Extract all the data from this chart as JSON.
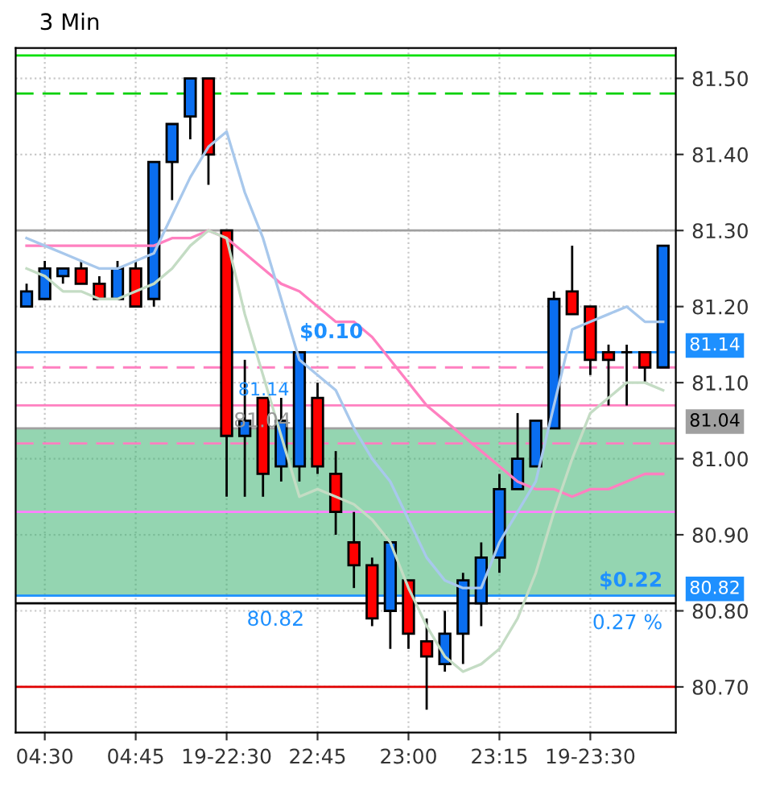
{
  "chart_data": {
    "type": "candlestick",
    "title": "3 Min",
    "categories": [
      null,
      "04:30",
      null,
      null,
      null,
      null,
      "04:45",
      null,
      null,
      null,
      null,
      "19-22:30",
      null,
      null,
      null,
      null,
      "22:45",
      null,
      null,
      null,
      null,
      "23:00",
      null,
      null,
      null,
      null,
      "23:15",
      null,
      null,
      null,
      null,
      "19-23:30",
      null,
      null,
      null,
      null
    ],
    "ohlc": [
      [
        81.2,
        81.23,
        81.2,
        81.22
      ],
      [
        81.21,
        81.26,
        81.21,
        81.25
      ],
      [
        81.24,
        81.25,
        81.23,
        81.25
      ],
      [
        81.25,
        81.26,
        81.23,
        81.23
      ],
      [
        81.23,
        81.24,
        81.21,
        81.21
      ],
      [
        81.21,
        81.26,
        81.21,
        81.25
      ],
      [
        81.25,
        81.26,
        81.2,
        81.2
      ],
      [
        81.21,
        81.39,
        81.2,
        81.39
      ],
      [
        81.39,
        81.44,
        81.34,
        81.44
      ],
      [
        81.45,
        81.5,
        81.42,
        81.5
      ],
      [
        81.5,
        81.5,
        81.36,
        81.4
      ],
      [
        81.3,
        81.3,
        80.95,
        81.03
      ],
      [
        81.03,
        81.13,
        80.95,
        81.05
      ],
      [
        81.08,
        81.08,
        80.95,
        80.98
      ],
      [
        80.99,
        81.08,
        80.97,
        81.05
      ],
      [
        80.99,
        81.14,
        80.97,
        81.14
      ],
      [
        81.08,
        81.1,
        80.98,
        80.99
      ],
      [
        80.98,
        81.01,
        80.9,
        80.93
      ],
      [
        80.89,
        80.93,
        80.83,
        80.86
      ],
      [
        80.86,
        80.87,
        80.78,
        80.79
      ],
      [
        80.8,
        80.89,
        80.75,
        80.89
      ],
      [
        80.84,
        80.84,
        80.75,
        80.77
      ],
      [
        80.76,
        80.79,
        80.67,
        80.74
      ],
      [
        80.73,
        80.8,
        80.72,
        80.77
      ],
      [
        80.77,
        80.85,
        80.73,
        80.84
      ],
      [
        80.81,
        80.89,
        80.78,
        80.87
      ],
      [
        80.87,
        80.98,
        80.85,
        80.96
      ],
      [
        80.96,
        81.06,
        80.96,
        81.0
      ],
      [
        80.99,
        81.05,
        80.99,
        81.05
      ],
      [
        81.04,
        81.22,
        81.04,
        81.21
      ],
      [
        81.22,
        81.28,
        81.19,
        81.19
      ],
      [
        81.2,
        81.2,
        81.11,
        81.13
      ],
      [
        81.14,
        81.15,
        81.07,
        81.13
      ],
      [
        81.14,
        81.15,
        81.07,
        81.14
      ],
      [
        81.14,
        81.14,
        81.1,
        81.12
      ],
      [
        81.12,
        81.28,
        81.12,
        81.28
      ]
    ],
    "colors": [
      "#0a6ef0",
      "#0a6ef0",
      "#0a6ef0",
      "#ff0000",
      "#ff0000",
      "#0a6ef0",
      "#ff0000",
      "#0a6ef0",
      "#0a6ef0",
      "#0a6ef0",
      "#ff0000",
      "#ff0000",
      "#0a6ef0",
      "#ff0000",
      "#0a6ef0",
      "#0a6ef0",
      "#ff0000",
      "#ff0000",
      "#ff0000",
      "#ff0000",
      "#0a6ef0",
      "#ff0000",
      "#ff0000",
      "#0a6ef0",
      "#0a6ef0",
      "#0a6ef0",
      "#0a6ef0",
      "#0a6ef0",
      "#0a6ef0",
      "#0a6ef0",
      "#ff0000",
      "#ff0000",
      "#ff0000",
      "#000000",
      "#ff0000",
      "#0a6ef0"
    ],
    "series": [
      {
        "type": "line",
        "color": "#ff80c0",
        "values": [
          81.28,
          81.28,
          81.28,
          81.28,
          81.28,
          81.28,
          81.28,
          81.28,
          81.29,
          81.29,
          81.3,
          81.29,
          81.27,
          81.25,
          81.23,
          81.22,
          81.2,
          81.18,
          81.18,
          81.16,
          81.13,
          81.1,
          81.07,
          81.05,
          81.03,
          81.01,
          80.99,
          80.97,
          80.96,
          80.96,
          80.95,
          80.96,
          80.96,
          80.97,
          80.98,
          80.98
        ]
      },
      {
        "type": "line",
        "color": "#a8c8ec",
        "values": [
          81.29,
          81.28,
          81.27,
          81.26,
          81.25,
          81.25,
          81.26,
          81.27,
          81.32,
          81.37,
          81.41,
          81.43,
          81.35,
          81.29,
          81.21,
          81.13,
          81.11,
          81.09,
          81.04,
          81.0,
          80.97,
          80.92,
          80.87,
          80.84,
          80.83,
          80.83,
          80.89,
          80.93,
          80.97,
          81.07,
          81.17,
          81.18,
          81.19,
          81.2,
          81.18,
          81.18
        ]
      },
      {
        "type": "line",
        "color": "#c4dcc4",
        "values": [
          81.25,
          81.24,
          81.22,
          81.22,
          81.21,
          81.21,
          81.22,
          81.23,
          81.25,
          81.28,
          81.3,
          81.29,
          81.19,
          81.11,
          81.03,
          80.95,
          80.96,
          80.95,
          80.94,
          80.92,
          80.89,
          80.83,
          80.78,
          80.74,
          80.72,
          80.73,
          80.75,
          80.79,
          80.85,
          80.93,
          81.0,
          81.06,
          81.08,
          81.1,
          81.1,
          81.09
        ]
      }
    ],
    "ylim": [
      80.64,
      81.54
    ],
    "yticks": [
      {
        "value": 80.7,
        "label": "80.70"
      },
      {
        "value": 80.8,
        "label": "80.80"
      },
      {
        "value": 80.9,
        "label": "80.90"
      },
      {
        "value": 81.0,
        "label": "81.00"
      },
      {
        "value": 81.1,
        "label": "81.10"
      },
      {
        "value": 81.2,
        "label": "81.20"
      },
      {
        "value": 81.3,
        "label": "81.30"
      },
      {
        "value": 81.4,
        "label": "81.40"
      },
      {
        "value": 81.5,
        "label": "81.50"
      }
    ],
    "ref_lines": [
      {
        "axis": "y",
        "value": 81.53,
        "color": "#00e000",
        "line_style": "solid"
      },
      {
        "axis": "y",
        "value": 81.48,
        "color": "#00d000",
        "line_style": "dashed"
      },
      {
        "axis": "y",
        "value": 81.3,
        "color": "#a0a0a0",
        "line_style": "solid"
      },
      {
        "axis": "y",
        "value": 81.14,
        "color": "#1e90ff",
        "line_style": "solid",
        "label": "81.14"
      },
      {
        "axis": "y",
        "value": 81.12,
        "color": "#ff80c0",
        "line_style": "dashed"
      },
      {
        "axis": "y",
        "value": 81.07,
        "color": "#ff80c0",
        "line_style": "solid"
      },
      {
        "axis": "y",
        "value": 81.04,
        "color": "#a0a0a0",
        "line_style": "solid",
        "label": "81.04"
      },
      {
        "axis": "y",
        "value": 81.02,
        "color": "#ff80c0",
        "line_style": "dashed"
      },
      {
        "axis": "y",
        "value": 80.93,
        "color": "#ff80ff",
        "line_style": "solid"
      },
      {
        "axis": "y",
        "value": 80.82,
        "color": "#1e90ff",
        "line_style": "solid",
        "label": "80.82"
      },
      {
        "axis": "y",
        "value": 80.81,
        "color": "#000000",
        "line_style": "solid"
      },
      {
        "axis": "y",
        "value": 80.7,
        "color": "#e00000",
        "line_style": "solid"
      }
    ],
    "bands": [
      {
        "axis": "y",
        "from": 80.82,
        "to": 81.04,
        "color": "#3cb371"
      }
    ],
    "annotations": [
      "$0.10",
      "81.14",
      "81.04",
      "80.82",
      "$0.22",
      "0.27 %"
    ],
    "grid": true
  }
}
